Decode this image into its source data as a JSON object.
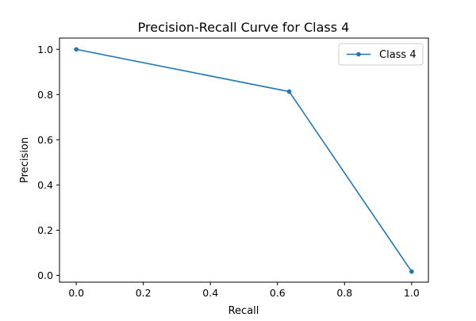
{
  "chart_data": {
    "type": "line",
    "title": "Precision-Recall Curve for Class 4",
    "xlabel": "Recall",
    "ylabel": "Precision",
    "xlim": [
      -0.05,
      1.05
    ],
    "ylim": [
      -0.03,
      1.05
    ],
    "xticks": [
      0.0,
      0.2,
      0.4,
      0.6,
      0.8,
      1.0
    ],
    "yticks": [
      0.0,
      0.2,
      0.4,
      0.6,
      0.8,
      1.0
    ],
    "xtick_labels": [
      "0.0",
      "0.2",
      "0.4",
      "0.6",
      "0.8",
      "1.0"
    ],
    "ytick_labels": [
      "0.0",
      "0.2",
      "0.4",
      "0.6",
      "0.8",
      "1.0"
    ],
    "grid": false,
    "legend_position": "top-right",
    "series": [
      {
        "name": "Class 4",
        "color": "#1f77b4",
        "marker": "circle",
        "x": [
          0.0,
          0.635,
          1.0
        ],
        "y": [
          1.0,
          0.813,
          0.017
        ]
      }
    ]
  }
}
